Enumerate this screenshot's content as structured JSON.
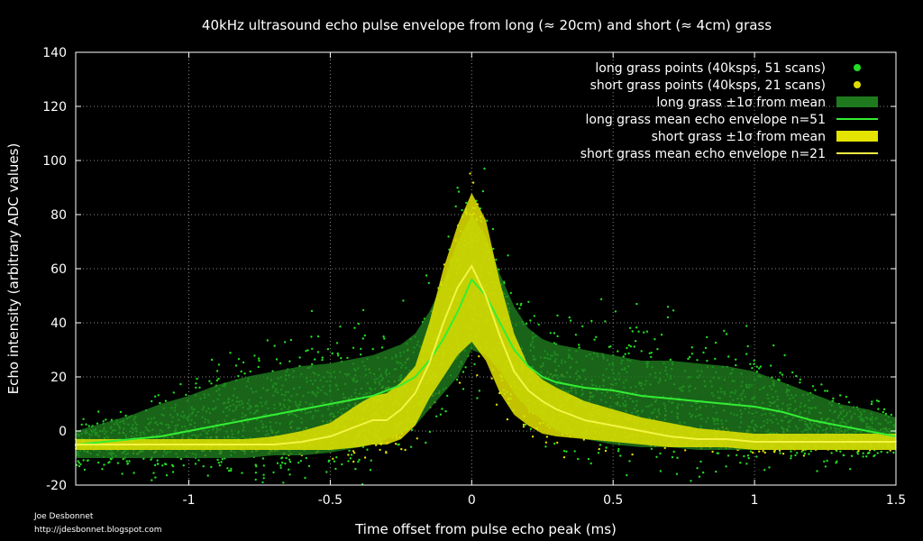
{
  "chart_data": {
    "type": "area",
    "title": "40kHz ultrasound echo pulse envelope from long (≈ 20cm) and short (≈ 4cm) grass",
    "xlabel": "Time offset from pulse echo peak (ms)",
    "ylabel": "Echo intensity (arbitrary ADC values)",
    "xlim": [
      -1.4,
      1.5
    ],
    "ylim": [
      -20,
      140
    ],
    "x_ticks": [
      -1,
      -0.5,
      0,
      0.5,
      1,
      1.5
    ],
    "x_tick_labels": [
      "-1",
      "-0.5",
      "0",
      "0.5",
      "1",
      "1.5"
    ],
    "y_ticks": [
      -20,
      0,
      20,
      40,
      60,
      80,
      100,
      120,
      140
    ],
    "y_tick_labels": [
      "-20",
      "0",
      "20",
      "40",
      "60",
      "80",
      "100",
      "120",
      "140"
    ],
    "grid": true,
    "legend_position": "top-right",
    "legend": [
      "long grass points (40ksps, 51 scans)",
      "short grass points (40ksps, 21 scans)",
      "long grass ±1σ from mean",
      "long grass mean echo envelope n=51",
      "short grass ±1σ from mean",
      "short grass mean echo envelope n=21"
    ],
    "colors": {
      "long_points": "#22dd22",
      "short_points": "#dddd00",
      "long_band": "#1f7a1f",
      "long_mean": "#33ee33",
      "short_band": "#e4e400",
      "short_mean": "#f4f444"
    },
    "x": [
      -1.4,
      -1.3,
      -1.2,
      -1.1,
      -1.0,
      -0.9,
      -0.8,
      -0.7,
      -0.6,
      -0.5,
      -0.4,
      -0.35,
      -0.3,
      -0.25,
      -0.2,
      -0.15,
      -0.1,
      -0.05,
      0.0,
      0.05,
      0.1,
      0.15,
      0.2,
      0.25,
      0.3,
      0.4,
      0.5,
      0.6,
      0.7,
      0.8,
      0.9,
      1.0,
      1.1,
      1.2,
      1.3,
      1.4,
      1.5
    ],
    "series": [
      {
        "name": "long grass mean echo envelope n=51",
        "mean": [
          -5,
          -4,
          -3,
          -2,
          0,
          2,
          4,
          6,
          8,
          10,
          12,
          13,
          15,
          17,
          20,
          26,
          34,
          44,
          56,
          50,
          40,
          30,
          24,
          20,
          18,
          16,
          15,
          13,
          12,
          11,
          10,
          9,
          7,
          4,
          2,
          0,
          -2
        ],
        "upper": [
          0,
          3,
          6,
          10,
          13,
          17,
          20,
          22,
          24,
          25,
          27,
          28,
          30,
          32,
          36,
          44,
          55,
          70,
          80,
          72,
          58,
          46,
          38,
          34,
          32,
          30,
          28,
          26,
          26,
          25,
          24,
          22,
          18,
          14,
          10,
          8,
          5
        ],
        "lower": [
          -10,
          -10,
          -10,
          -10,
          -10,
          -10,
          -10,
          -9,
          -9,
          -8,
          -6,
          -5,
          -3,
          -1,
          2,
          8,
          14,
          20,
          30,
          28,
          22,
          14,
          8,
          4,
          0,
          -3,
          -5,
          -6,
          -6,
          -7,
          -7,
          -7,
          -7,
          -7,
          -7,
          -7,
          -7
        ]
      },
      {
        "name": "short grass mean echo envelope n=21",
        "mean": [
          -5,
          -5,
          -5,
          -5,
          -5,
          -5,
          -5,
          -5,
          -4,
          -2,
          2,
          4,
          4,
          8,
          14,
          25,
          40,
          53,
          61,
          50,
          35,
          22,
          15,
          11,
          8,
          4,
          2,
          0,
          -2,
          -3,
          -3,
          -4,
          -4,
          -4,
          -4,
          -4,
          -4
        ],
        "upper": [
          -3,
          -3,
          -3,
          -3,
          -3,
          -3,
          -3,
          -2,
          0,
          3,
          10,
          13,
          14,
          18,
          24,
          40,
          60,
          76,
          88,
          78,
          55,
          36,
          24,
          19,
          16,
          11,
          8,
          5,
          3,
          1,
          0,
          -1,
          -1,
          -1,
          -1,
          -1,
          -1
        ],
        "lower": [
          -7,
          -7,
          -7,
          -7,
          -7,
          -7,
          -7,
          -7,
          -7,
          -7,
          -6,
          -5,
          -5,
          -3,
          2,
          12,
          20,
          28,
          33,
          26,
          14,
          6,
          2,
          -1,
          -2,
          -3,
          -4,
          -5,
          -6,
          -6,
          -6,
          -7,
          -7,
          -7,
          -7,
          -7,
          -7
        ]
      }
    ]
  },
  "credits": {
    "author": "Joe Desbonnet",
    "url": "http://jdesbonnet.blogspot.com"
  }
}
